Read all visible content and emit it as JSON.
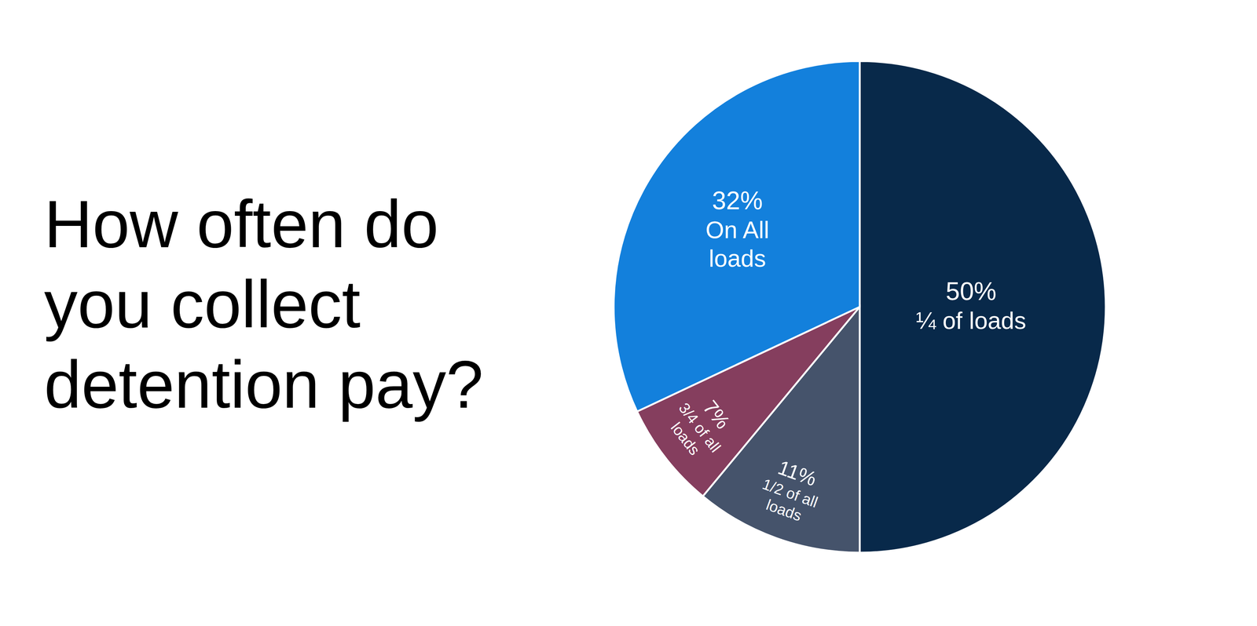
{
  "chart_data": {
    "type": "pie",
    "title": "How often do you collect detention pay?",
    "categories": [
      "¼ of loads",
      "1/2 of all loads",
      "3/4 of all loads",
      "On All loads"
    ],
    "values": [
      50,
      11,
      7,
      32
    ],
    "value_labels": [
      "50%",
      "11%",
      "7%",
      "32%"
    ],
    "colors": [
      "#08294a",
      "#45536b",
      "#853e5e",
      "#1380dc"
    ],
    "data_labels": true
  }
}
